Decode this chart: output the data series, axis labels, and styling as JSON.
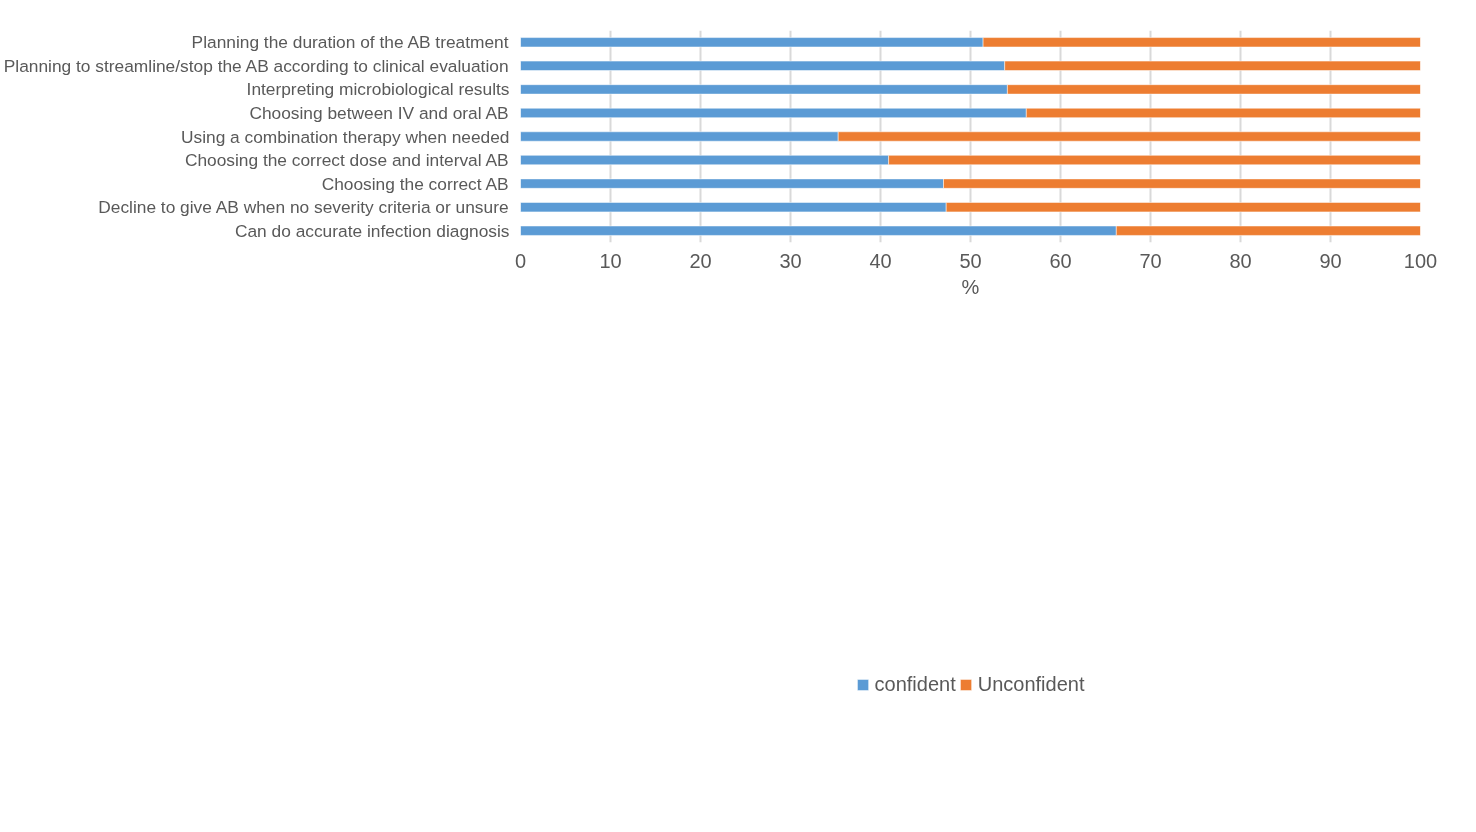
{
  "chart_data": {
    "type": "bar",
    "orientation": "horizontal",
    "stacked": true,
    "categories": [
      "Planning the duration of the AB treatment",
      "Planning to streamline/stop the AB according to clinical evaluation",
      "Interpreting microbiological results",
      "Choosing between IV and oral AB",
      "Using a combination therapy when needed",
      "Choosing the correct dose and interval AB",
      "Choosing the correct AB",
      "Decline to give AB when no severity criteria or unsure",
      "Can do accurate infection diagnosis"
    ],
    "series": [
      {
        "name": "confident",
        "color": "#5b9bd5",
        "values": [
          51.4,
          53.8,
          54.1,
          56.2,
          35.3,
          40.9,
          47.0,
          47.3,
          66.2
        ]
      },
      {
        "name": "Unconfident",
        "color": "#ed7d31",
        "values": [
          48.6,
          46.2,
          45.9,
          43.8,
          64.7,
          59.1,
          53.0,
          52.7,
          33.8
        ]
      }
    ],
    "xlabel": "%",
    "xlim": [
      0,
      100
    ],
    "xticks": [
      0,
      10,
      20,
      30,
      40,
      50,
      60,
      70,
      80,
      90,
      100
    ],
    "grid": "x",
    "legend": "bottom"
  }
}
